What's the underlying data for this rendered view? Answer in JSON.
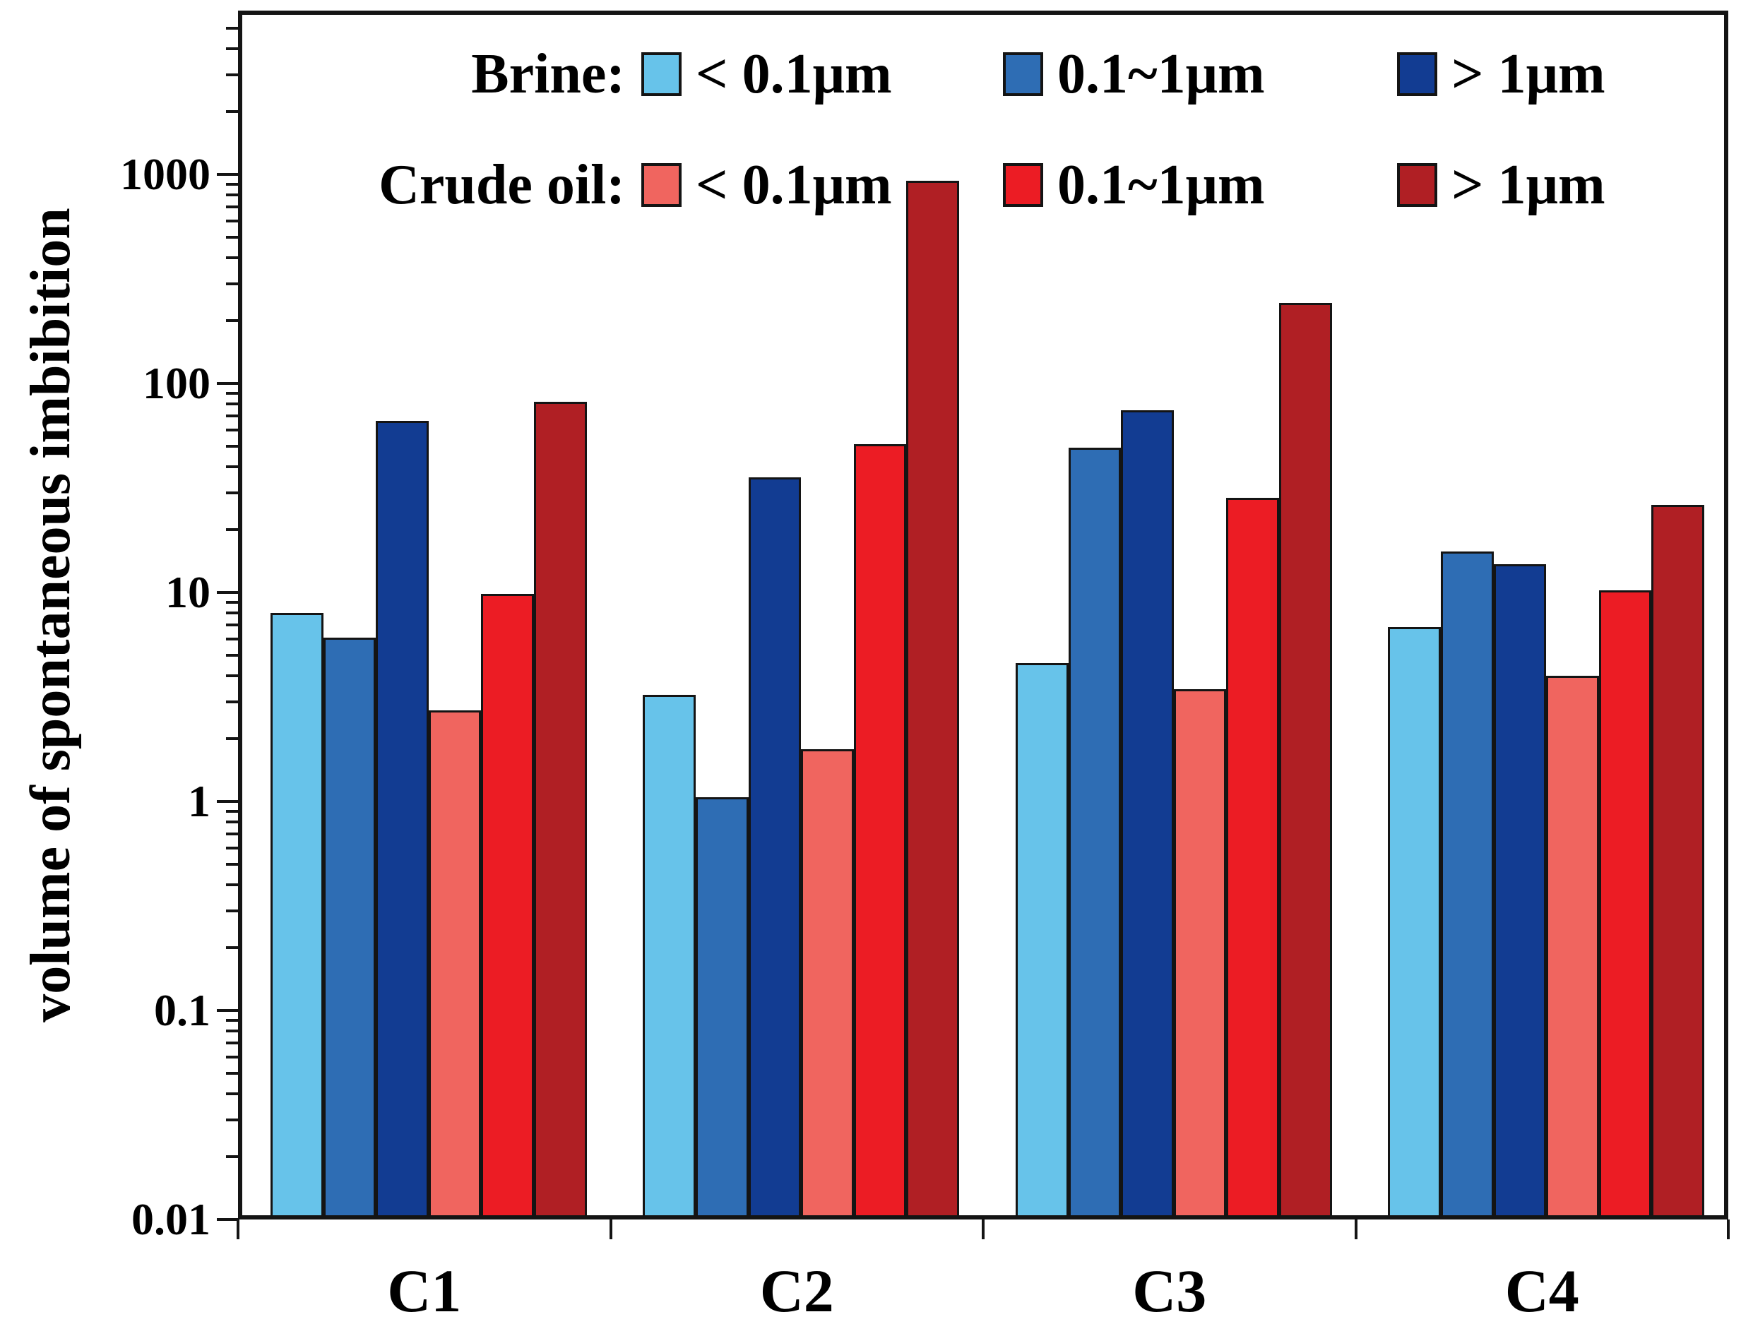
{
  "chart_data": {
    "type": "bar",
    "title": "",
    "xlabel": "",
    "ylabel": "volume of spontaneous imbibition",
    "log_scale_y": true,
    "ylim": [
      0.01,
      6000
    ],
    "yticks": [
      "0.01",
      "0.1",
      "1",
      "10",
      "100",
      "1000"
    ],
    "categories": [
      "C1",
      "C2",
      "C3",
      "C4"
    ],
    "grid": "off",
    "legend_position": "top-inside",
    "legend_rows": [
      {
        "label": "Brine:",
        "fluid": "Brine"
      },
      {
        "label": "Crude oil:",
        "fluid": "Crude oil"
      }
    ],
    "series": [
      {
        "fluid": "Brine",
        "name": "< 0.1μm",
        "color": "#67C3EA",
        "values": [
          7.6,
          3.1,
          4.4,
          6.5
        ]
      },
      {
        "fluid": "Brine",
        "name": "0.1~1μm",
        "color": "#2E6DB4",
        "values": [
          5.8,
          1.0,
          47,
          15
        ]
      },
      {
        "fluid": "Brine",
        "name": "> 1μm",
        "color": "#123C92",
        "values": [
          63,
          34,
          71,
          13
        ]
      },
      {
        "fluid": "Crude oil",
        "name": "< 0.1μm",
        "color": "#F0655F",
        "values": [
          2.6,
          1.7,
          3.3,
          3.8
        ]
      },
      {
        "fluid": "Crude oil",
        "name": "0.1~1μm",
        "color": "#EC1C24",
        "values": [
          9.4,
          49,
          27,
          9.8
        ]
      },
      {
        "fluid": "Crude oil",
        "name": "> 1μm",
        "color": "#B01F24",
        "values": [
          78,
          890,
          232,
          25
        ]
      }
    ]
  }
}
